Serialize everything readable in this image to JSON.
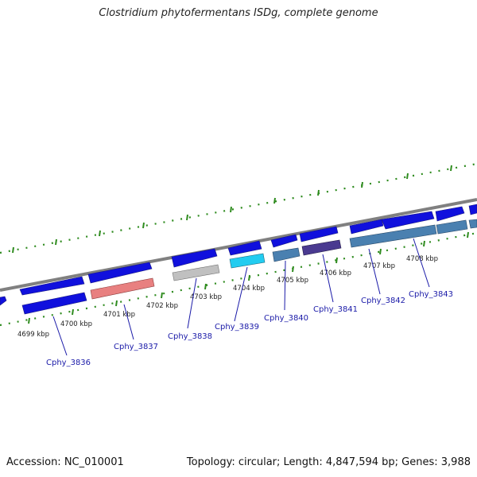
{
  "title": "Clostridium phytofermentans ISDg, complete genome",
  "accession_label": "Accession: NC_010001",
  "topology_label": "Topology: circular; Length: 4,847,594 bp; Genes: 3,988",
  "kbp_labels": [
    "4699 kbp",
    "4700 kbp",
    "4701 kbp",
    "4702 kbp",
    "4703 kbp",
    "4704 kbp",
    "4705 kbp",
    "4706 kbp",
    "4707 kbp",
    "4708 kbp"
  ],
  "gene_labels": [
    "Cphy_3836",
    "Cphy_3837",
    "Cphy_3838",
    "Cphy_3839",
    "Cphy_3840",
    "Cphy_3841",
    "Cphy_3842",
    "Cphy_3843"
  ],
  "colors": {
    "backbone": "#808080",
    "tick": "#2e8b1e",
    "gene_blue": "#1010dd",
    "cog_red": "#e88080",
    "cog_gray": "#c0c0c0",
    "cog_cyan": "#22ccf0",
    "cog_steel": "#4a80b0",
    "cog_purple": "#4a3a90",
    "gene_label": "#1a1aa8"
  }
}
